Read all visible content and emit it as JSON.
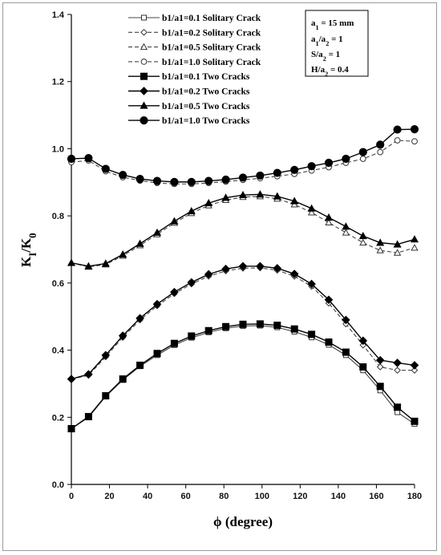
{
  "chart_data": {
    "type": "line",
    "xlabel": "ϕ (degree)",
    "ylabel": "KI/K0",
    "xlim": [
      0,
      180
    ],
    "ylim": [
      0.0,
      1.4
    ],
    "xticks": [
      0,
      20,
      40,
      60,
      80,
      100,
      120,
      140,
      160,
      180
    ],
    "yticks": [
      0.0,
      0.2,
      0.4,
      0.6,
      0.8,
      1.0,
      1.2,
      1.4
    ],
    "grid": false,
    "legend_position": "top",
    "x": [
      0,
      9,
      18,
      27,
      36,
      45,
      54,
      63,
      72,
      81,
      90,
      99,
      108,
      117,
      126,
      135,
      144,
      153,
      162,
      171,
      180
    ],
    "series": [
      {
        "name": "b1/a1=0.1  Solitary Crack",
        "marker": "open-square",
        "dash": "solid",
        "color": "#444444",
        "values": [
          0.166,
          0.2,
          0.262,
          0.311,
          0.352,
          0.385,
          0.415,
          0.437,
          0.453,
          0.465,
          0.472,
          0.473,
          0.468,
          0.455,
          0.438,
          0.416,
          0.385,
          0.34,
          0.28,
          0.215,
          0.18
        ]
      },
      {
        "name": "b1/a1=0.2  Solitary Crack",
        "marker": "open-diamond",
        "dash": "dashed",
        "color": "#444444",
        "values": [
          0.314,
          0.325,
          0.38,
          0.438,
          0.49,
          0.532,
          0.568,
          0.597,
          0.62,
          0.636,
          0.644,
          0.645,
          0.638,
          0.62,
          0.59,
          0.54,
          0.478,
          0.415,
          0.35,
          0.34,
          0.34
        ]
      },
      {
        "name": "b1/a1=0.5  Solitary Crack",
        "marker": "open-triangle",
        "dash": "dashed",
        "color": "#444444",
        "values": [
          0.66,
          0.648,
          0.655,
          0.681,
          0.712,
          0.745,
          0.779,
          0.808,
          0.831,
          0.847,
          0.856,
          0.858,
          0.851,
          0.834,
          0.81,
          0.78,
          0.75,
          0.72,
          0.697,
          0.69,
          0.705
        ]
      },
      {
        "name": "b1/a1=1.0  Solitary Crack",
        "marker": "open-circle",
        "dash": "dashed",
        "color": "#444444",
        "values": [
          0.96,
          0.965,
          0.933,
          0.915,
          0.905,
          0.898,
          0.895,
          0.895,
          0.898,
          0.902,
          0.907,
          0.912,
          0.918,
          0.925,
          0.935,
          0.945,
          0.958,
          0.97,
          0.99,
          1.025,
          1.022
        ]
      },
      {
        "name": "b1/a1=0.1  Two Cracks",
        "marker": "filled-square",
        "dash": "solid",
        "color": "#000000",
        "values": [
          0.166,
          0.202,
          0.264,
          0.314,
          0.355,
          0.39,
          0.42,
          0.442,
          0.458,
          0.47,
          0.477,
          0.478,
          0.474,
          0.463,
          0.447,
          0.424,
          0.394,
          0.35,
          0.292,
          0.23,
          0.188
        ]
      },
      {
        "name": "b1/a1=0.2  Two Cracks",
        "marker": "filled-diamond",
        "dash": "solid",
        "color": "#000000",
        "values": [
          0.314,
          0.328,
          0.385,
          0.443,
          0.495,
          0.537,
          0.573,
          0.602,
          0.626,
          0.642,
          0.65,
          0.65,
          0.644,
          0.627,
          0.597,
          0.55,
          0.49,
          0.428,
          0.37,
          0.362,
          0.355
        ]
      },
      {
        "name": "b1/a1=0.5  Two Cracks",
        "marker": "filled-triangle",
        "dash": "solid",
        "color": "#000000",
        "values": [
          0.66,
          0.65,
          0.658,
          0.685,
          0.717,
          0.75,
          0.784,
          0.814,
          0.838,
          0.854,
          0.862,
          0.864,
          0.858,
          0.844,
          0.822,
          0.795,
          0.768,
          0.74,
          0.72,
          0.715,
          0.73
        ]
      },
      {
        "name": "b1/a1=1.0  Two Cracks",
        "marker": "filled-circle",
        "dash": "solid",
        "color": "#000000",
        "values": [
          0.97,
          0.972,
          0.94,
          0.922,
          0.91,
          0.904,
          0.901,
          0.901,
          0.904,
          0.908,
          0.914,
          0.92,
          0.928,
          0.937,
          0.948,
          0.958,
          0.97,
          0.99,
          1.012,
          1.057,
          1.058
        ]
      }
    ],
    "parameters": [
      "a1 = 15 mm",
      "a1/a2 = 1",
      "S/a2 = 1",
      "H/a2 = 0.4"
    ]
  }
}
